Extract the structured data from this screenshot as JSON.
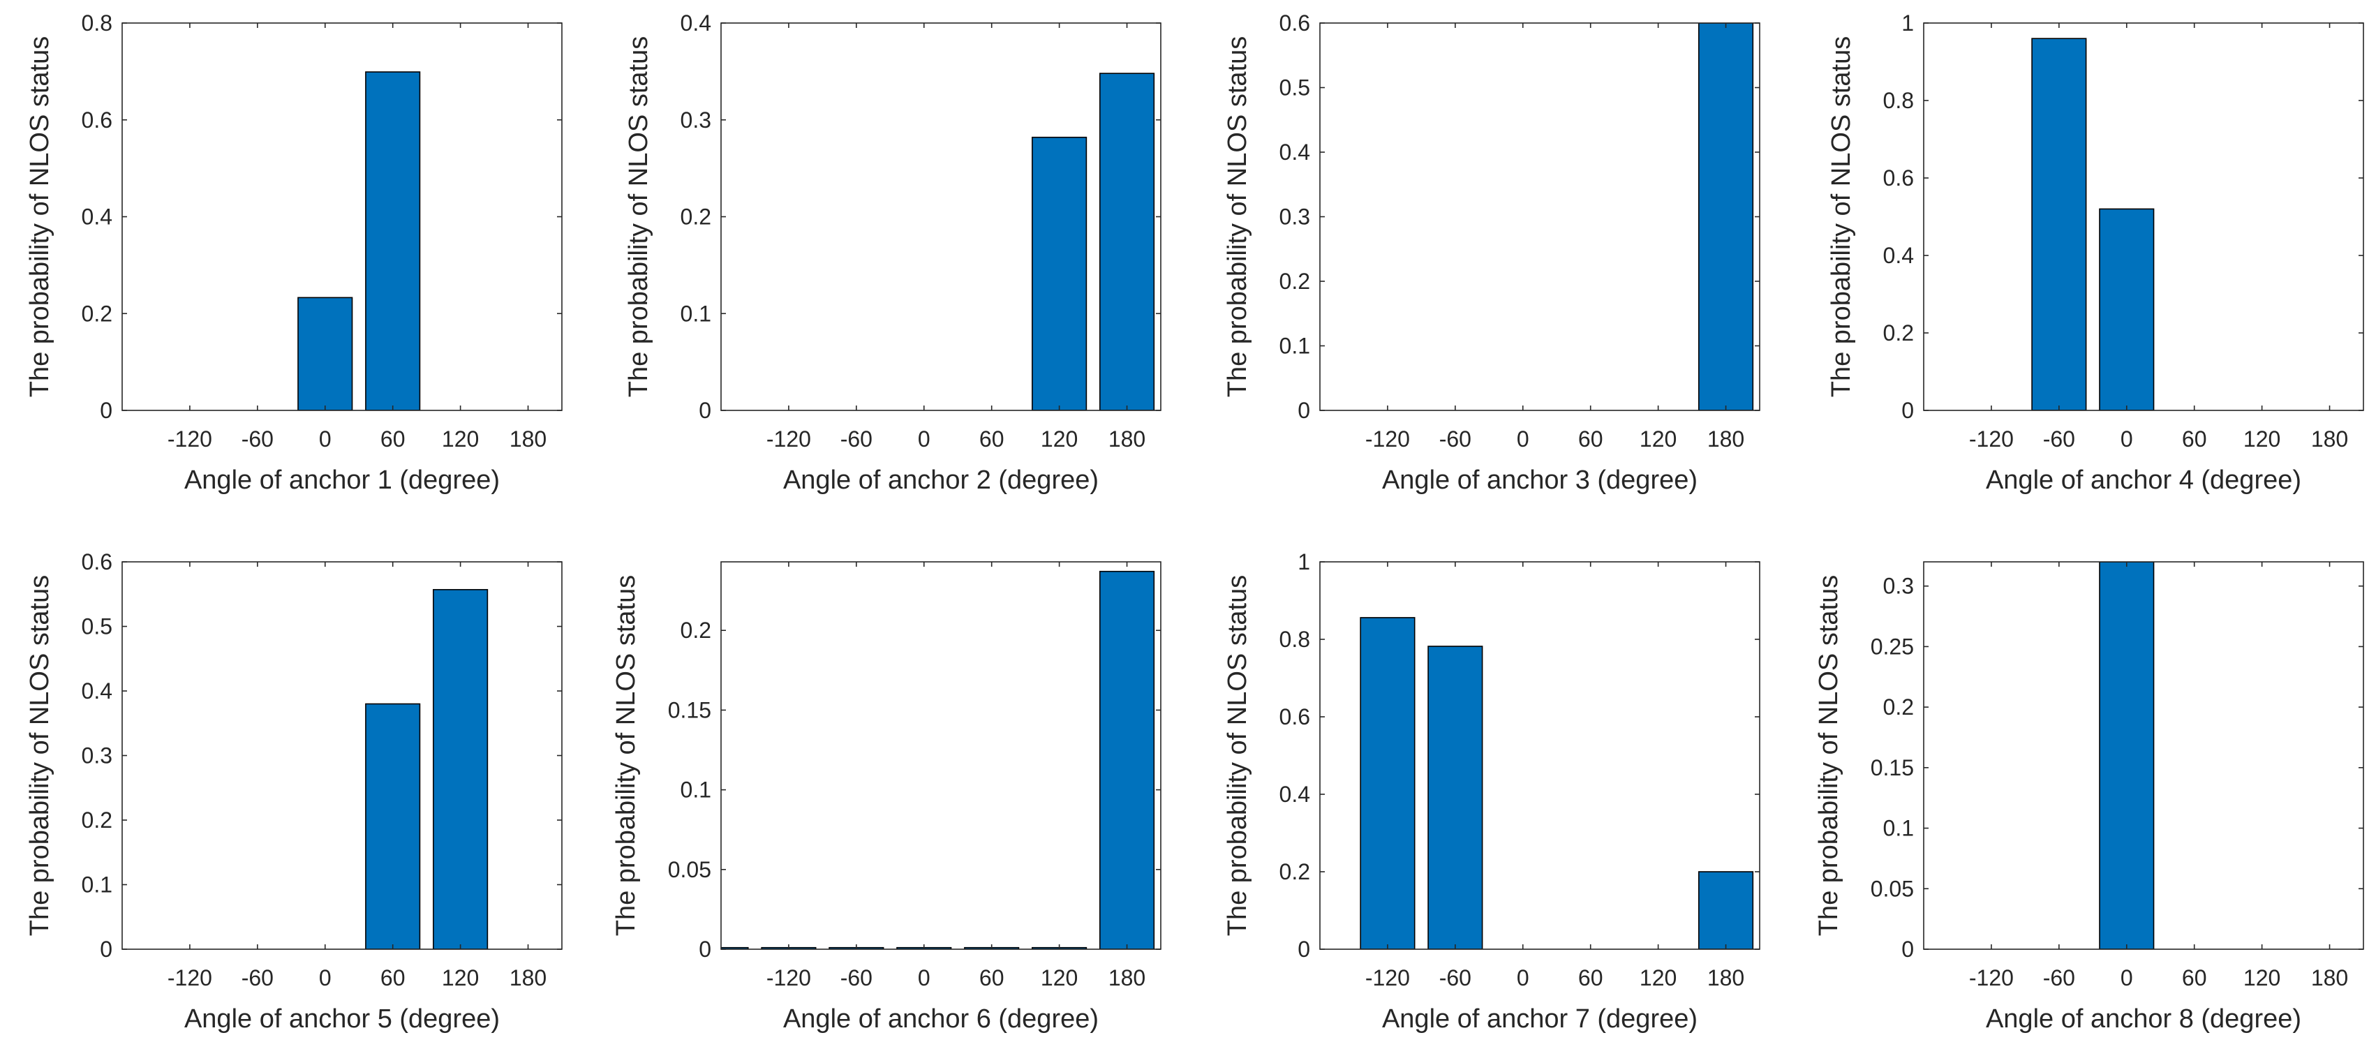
{
  "figure": {
    "y_axis_label": "The probability of NLOS status",
    "bar_color": "#0072BD"
  },
  "chart_data": [
    {
      "type": "bar",
      "title": "",
      "xlabel": "Angle of anchor 1 (degree)",
      "ylabel": "The probability of NLOS status",
      "x_tick_labels": [
        "-120",
        "-60",
        "0",
        "60",
        "120",
        "180"
      ],
      "xlim": [
        -180,
        210
      ],
      "ylim": [
        0,
        0.8
      ],
      "y_tick_labels": [
        "0",
        "0.2",
        "0.4",
        "0.6",
        "0.8"
      ],
      "y_ticks": [
        0,
        0.2,
        0.4,
        0.6,
        0.8
      ],
      "bars": [
        {
          "x": 0,
          "value": 0.233
        },
        {
          "x": 60,
          "value": 0.699
        }
      ]
    },
    {
      "type": "bar",
      "title": "",
      "xlabel": "Angle of anchor 2 (degree)",
      "ylabel": "The probability of NLOS status",
      "x_tick_labels": [
        "-120",
        "-60",
        "0",
        "60",
        "120",
        "180"
      ],
      "xlim": [
        -180,
        210
      ],
      "ylim": [
        0,
        0.4
      ],
      "y_tick_labels": [
        "0",
        "0.1",
        "0.2",
        "0.3",
        "0.4"
      ],
      "y_ticks": [
        0,
        0.1,
        0.2,
        0.3,
        0.4
      ],
      "bars": [
        {
          "x": 120,
          "value": 0.282
        },
        {
          "x": 180,
          "value": 0.348
        }
      ]
    },
    {
      "type": "bar",
      "title": "",
      "xlabel": "Angle of anchor 3 (degree)",
      "ylabel": "The probability of NLOS status",
      "x_tick_labels": [
        "-120",
        "-60",
        "0",
        "60",
        "120",
        "180"
      ],
      "xlim": [
        -180,
        210
      ],
      "ylim": [
        0,
        0.6
      ],
      "y_tick_labels": [
        "0",
        "0.1",
        "0.2",
        "0.3",
        "0.4",
        "0.5",
        "0.6"
      ],
      "y_ticks": [
        0,
        0.1,
        0.2,
        0.3,
        0.4,
        0.5,
        0.6
      ],
      "bars": [
        {
          "x": 180,
          "value": 0.6
        }
      ]
    },
    {
      "type": "bar",
      "title": "",
      "xlabel": "Angle of anchor 4 (degree)",
      "ylabel": "The probability of NLOS status",
      "x_tick_labels": [
        "-120",
        "-60",
        "0",
        "60",
        "120",
        "180"
      ],
      "xlim": [
        -180,
        210
      ],
      "ylim": [
        0,
        1
      ],
      "y_tick_labels": [
        "0",
        "0.2",
        "0.4",
        "0.6",
        "0.8",
        "1"
      ],
      "y_ticks": [
        0,
        0.2,
        0.4,
        0.6,
        0.8,
        1
      ],
      "bars": [
        {
          "x": -60,
          "value": 0.96
        },
        {
          "x": 0,
          "value": 0.52
        }
      ]
    },
    {
      "type": "bar",
      "title": "",
      "xlabel": "Angle of anchor 5 (degree)",
      "ylabel": "The probability of NLOS status",
      "x_tick_labels": [
        "-120",
        "-60",
        "0",
        "60",
        "120",
        "180"
      ],
      "xlim": [
        -180,
        210
      ],
      "ylim": [
        0,
        0.6
      ],
      "y_tick_labels": [
        "0",
        "0.1",
        "0.2",
        "0.3",
        "0.4",
        "0.5",
        "0.6"
      ],
      "y_ticks": [
        0,
        0.1,
        0.2,
        0.3,
        0.4,
        0.5,
        0.6
      ],
      "bars": [
        {
          "x": 60,
          "value": 0.38
        },
        {
          "x": 120,
          "value": 0.557
        }
      ]
    },
    {
      "type": "bar",
      "title": "",
      "xlabel": "Angle of anchor 6 (degree)",
      "ylabel": "The probability of NLOS status",
      "x_tick_labels": [
        "-120",
        "-60",
        "0",
        "60",
        "120",
        "180"
      ],
      "xlim": [
        -180,
        210
      ],
      "ylim": [
        0,
        0.243
      ],
      "y_tick_labels": [
        "0",
        "0.05",
        "0.1",
        "0.15",
        "0.2"
      ],
      "y_ticks": [
        0,
        0.05,
        0.1,
        0.15,
        0.2
      ],
      "bars": [
        {
          "x": -180,
          "value": 0.001
        },
        {
          "x": -120,
          "value": 0.001
        },
        {
          "x": -60,
          "value": 0.001
        },
        {
          "x": 0,
          "value": 0.001
        },
        {
          "x": 60,
          "value": 0.001
        },
        {
          "x": 120,
          "value": 0.001
        },
        {
          "x": 180,
          "value": 0.237
        }
      ]
    },
    {
      "type": "bar",
      "title": "",
      "xlabel": "Angle of anchor 7 (degree)",
      "ylabel": "The probability of NLOS status",
      "x_tick_labels": [
        "-120",
        "-60",
        "0",
        "60",
        "120",
        "180"
      ],
      "xlim": [
        -180,
        210
      ],
      "ylim": [
        0,
        1
      ],
      "y_tick_labels": [
        "0",
        "0.2",
        "0.4",
        "0.6",
        "0.8",
        "1"
      ],
      "y_ticks": [
        0,
        0.2,
        0.4,
        0.6,
        0.8,
        1
      ],
      "bars": [
        {
          "x": -120,
          "value": 0.856
        },
        {
          "x": -60,
          "value": 0.782
        },
        {
          "x": 180,
          "value": 0.2
        }
      ]
    },
    {
      "type": "bar",
      "title": "",
      "xlabel": "Angle of anchor 8 (degree)",
      "ylabel": "The probability of NLOS status",
      "x_tick_labels": [
        "-120",
        "-60",
        "0",
        "60",
        "120",
        "180"
      ],
      "xlim": [
        -180,
        210
      ],
      "ylim": [
        0,
        0.32
      ],
      "y_tick_labels": [
        "0",
        "0.05",
        "0.1",
        "0.15",
        "0.2",
        "0.25",
        "0.3"
      ],
      "y_ticks": [
        0,
        0.05,
        0.1,
        0.15,
        0.2,
        0.25,
        0.3
      ],
      "bars": [
        {
          "x": 0,
          "value": 0.32
        }
      ]
    }
  ]
}
